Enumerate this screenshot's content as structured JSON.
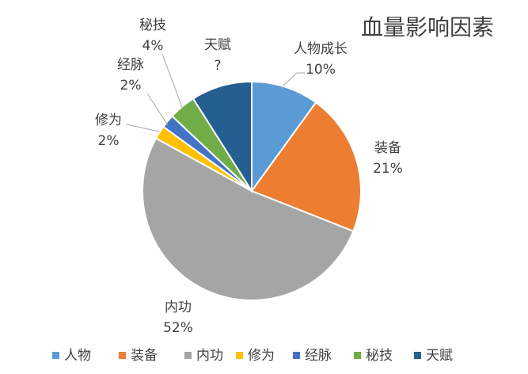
{
  "chart_data": {
    "type": "pie",
    "title": "血量影响因素",
    "categories": [
      "人物",
      "装备",
      "内功",
      "修为",
      "经脉",
      "秘技",
      "天赋"
    ],
    "label_names": [
      "人物成长",
      "装备",
      "内功",
      "修为",
      "经脉",
      "秘技",
      "天赋"
    ],
    "values": [
      10,
      21,
      52,
      2,
      2,
      4,
      9
    ],
    "value_labels": [
      "10%",
      "21%",
      "52%",
      "2%",
      "2%",
      "4%",
      "?"
    ],
    "colors": [
      "#5b9bd5",
      "#ed7d31",
      "#a5a5a5",
      "#ffc000",
      "#4472c4",
      "#70ad47",
      "#255e91"
    ],
    "legend": "bottom"
  }
}
